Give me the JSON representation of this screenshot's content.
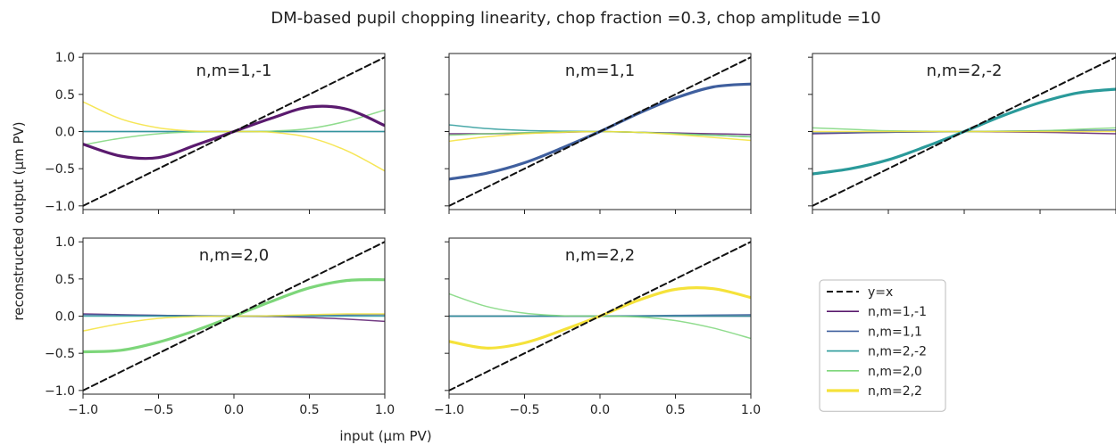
{
  "figure": {
    "title": "DM-based pupil chopping linearity, chop fraction =0.3, chop amplitude =10",
    "xlabel": "input (μm PV)",
    "ylabel": "reconstructed output (μm PV)"
  },
  "colors": {
    "n,m=1,-1": "#5a1a6e",
    "n,m=1,1": "#3f5f9e",
    "n,m=2,-2": "#2a9a9a",
    "n,m=2,0": "#7dd67a",
    "n,m=2,2": "#f5e23a",
    "y=x": "#111111"
  },
  "legend": {
    "location": "lower-right",
    "entries": [
      "y=x",
      "n,m=1,-1",
      "n,m=1,1",
      "n,m=2,-2",
      "n,m=2,0",
      "n,m=2,2"
    ]
  },
  "chart_data": [
    {
      "type": "line",
      "title": "n,m=1,-1",
      "x": [
        -1.0,
        -0.75,
        -0.5,
        -0.25,
        0.0,
        0.25,
        0.5,
        0.75,
        1.0
      ],
      "xlim": [
        -1.0,
        1.0
      ],
      "ylim": [
        -1.05,
        1.05
      ],
      "xticks": [
        "−1.0",
        "−0.5",
        "0.0",
        "0.5",
        "1.0"
      ],
      "yticks": [
        "−1.0",
        "−0.5",
        "0.0",
        "0.5",
        "1.0"
      ],
      "series": [
        {
          "name": "y=x",
          "values": [
            -1.0,
            -0.75,
            -0.5,
            -0.25,
            0.0,
            0.25,
            0.5,
            0.75,
            1.0
          ]
        },
        {
          "name": "n,m=1,-1",
          "values": [
            -0.17,
            -0.33,
            -0.35,
            -0.18,
            0.0,
            0.18,
            0.33,
            0.3,
            0.08
          ]
        },
        {
          "name": "n,m=1,1",
          "values": [
            0.0,
            0.0,
            0.0,
            0.0,
            0.0,
            0.0,
            0.0,
            0.0,
            0.0
          ]
        },
        {
          "name": "n,m=2,-2",
          "values": [
            0.0,
            0.0,
            0.0,
            0.0,
            0.0,
            0.0,
            0.0,
            0.0,
            0.0
          ]
        },
        {
          "name": "n,m=2,0",
          "values": [
            -0.18,
            -0.09,
            -0.03,
            -0.005,
            0.0,
            0.005,
            0.04,
            0.14,
            0.29
          ]
        },
        {
          "name": "n,m=2,2",
          "values": [
            0.4,
            0.17,
            0.05,
            0.005,
            0.0,
            -0.01,
            -0.08,
            -0.26,
            -0.53
          ]
        }
      ]
    },
    {
      "type": "line",
      "title": "n,m=1,1",
      "x": [
        -1.0,
        -0.75,
        -0.5,
        -0.25,
        0.0,
        0.25,
        0.5,
        0.75,
        1.0
      ],
      "xlim": [
        -1.0,
        1.0
      ],
      "ylim": [
        -1.05,
        1.05
      ],
      "xticks": [
        "−1.0",
        "−0.5",
        "0.0",
        "0.5",
        "1.0"
      ],
      "yticks": [
        "−1.0",
        "−0.5",
        "0.0",
        "0.5",
        "1.0"
      ],
      "series": [
        {
          "name": "y=x",
          "values": [
            -1.0,
            -0.75,
            -0.5,
            -0.25,
            0.0,
            0.25,
            0.5,
            0.75,
            1.0
          ]
        },
        {
          "name": "n,m=1,-1",
          "values": [
            -0.03,
            -0.03,
            -0.02,
            -0.01,
            0.0,
            -0.01,
            -0.02,
            -0.03,
            -0.04
          ]
        },
        {
          "name": "n,m=1,1",
          "values": [
            -0.64,
            -0.56,
            -0.42,
            -0.22,
            0.0,
            0.24,
            0.45,
            0.6,
            0.64
          ]
        },
        {
          "name": "n,m=2,-2",
          "values": [
            0.09,
            0.04,
            0.015,
            0.005,
            0.0,
            -0.01,
            -0.03,
            -0.05,
            -0.07
          ]
        },
        {
          "name": "n,m=2,0",
          "values": [
            -0.05,
            -0.03,
            -0.015,
            -0.005,
            0.0,
            -0.01,
            -0.03,
            -0.05,
            -0.07
          ]
        },
        {
          "name": "n,m=2,2",
          "values": [
            -0.13,
            -0.07,
            -0.03,
            -0.01,
            0.0,
            -0.01,
            -0.04,
            -0.08,
            -0.12
          ]
        }
      ]
    },
    {
      "type": "line",
      "title": "n,m=2,-2",
      "x": [
        -1.0,
        -0.75,
        -0.5,
        -0.25,
        0.0,
        0.25,
        0.5,
        0.75,
        1.0
      ],
      "xlim": [
        -1.0,
        1.0
      ],
      "ylim": [
        -1.05,
        1.05
      ],
      "xticks": [
        "−1.0",
        "−0.5",
        "0.0",
        "0.5",
        "1.0"
      ],
      "yticks": [
        "−1.0",
        "−0.5",
        "0.0",
        "0.5",
        "1.0"
      ],
      "series": [
        {
          "name": "y=x",
          "values": [
            -1.0,
            -0.75,
            -0.5,
            -0.25,
            0.0,
            0.25,
            0.5,
            0.75,
            1.0
          ]
        },
        {
          "name": "n,m=1,-1",
          "values": [
            -0.03,
            -0.02,
            -0.01,
            -0.005,
            0.0,
            -0.005,
            -0.01,
            -0.02,
            -0.03
          ]
        },
        {
          "name": "n,m=1,1",
          "values": [
            -0.02,
            -0.015,
            -0.01,
            -0.005,
            0.0,
            0.005,
            0.01,
            0.015,
            0.02
          ]
        },
        {
          "name": "n,m=2,-2",
          "values": [
            -0.57,
            -0.5,
            -0.38,
            -0.2,
            0.0,
            0.21,
            0.39,
            0.52,
            0.57
          ]
        },
        {
          "name": "n,m=2,0",
          "values": [
            0.05,
            0.03,
            0.01,
            0.005,
            0.0,
            0.005,
            0.01,
            0.03,
            0.05
          ]
        },
        {
          "name": "n,m=2,2",
          "values": [
            0.0,
            0.0,
            0.0,
            0.0,
            0.0,
            0.0,
            0.0,
            0.0,
            0.0
          ]
        }
      ]
    },
    {
      "type": "line",
      "title": "n,m=2,0",
      "x": [
        -1.0,
        -0.75,
        -0.5,
        -0.25,
        0.0,
        0.25,
        0.5,
        0.75,
        1.0
      ],
      "xlim": [
        -1.0,
        1.0
      ],
      "ylim": [
        -1.05,
        1.05
      ],
      "xticks": [
        "−1.0",
        "−0.5",
        "0.0",
        "0.5",
        "1.0"
      ],
      "yticks": [
        "−1.0",
        "−0.5",
        "0.0",
        "0.5",
        "1.0"
      ],
      "series": [
        {
          "name": "y=x",
          "values": [
            -1.0,
            -0.75,
            -0.5,
            -0.25,
            0.0,
            0.25,
            0.5,
            0.75,
            1.0
          ]
        },
        {
          "name": "n,m=1,-1",
          "values": [
            0.03,
            0.02,
            0.01,
            0.005,
            0.0,
            -0.005,
            -0.02,
            -0.04,
            -0.07
          ]
        },
        {
          "name": "n,m=1,1",
          "values": [
            0.02,
            0.015,
            0.01,
            0.005,
            0.0,
            0.005,
            0.01,
            0.015,
            0.02
          ]
        },
        {
          "name": "n,m=2,-2",
          "values": [
            0.0,
            0.0,
            0.0,
            0.0,
            0.0,
            0.0,
            0.0,
            0.0,
            0.0
          ]
        },
        {
          "name": "n,m=2,0",
          "values": [
            -0.48,
            -0.46,
            -0.35,
            -0.19,
            0.0,
            0.2,
            0.38,
            0.48,
            0.49
          ]
        },
        {
          "name": "n,m=2,2",
          "values": [
            -0.2,
            -0.1,
            -0.03,
            -0.005,
            0.0,
            0.005,
            0.02,
            0.03,
            0.03
          ]
        }
      ]
    },
    {
      "type": "line",
      "title": "n,m=2,2",
      "x": [
        -1.0,
        -0.75,
        -0.5,
        -0.25,
        0.0,
        0.25,
        0.5,
        0.75,
        1.0
      ],
      "xlim": [
        -1.0,
        1.0
      ],
      "ylim": [
        -1.05,
        1.05
      ],
      "xticks": [
        "−1.0",
        "−0.5",
        "0.0",
        "0.5",
        "1.0"
      ],
      "yticks": [
        "−1.0",
        "−0.5",
        "0.0",
        "0.5",
        "1.0"
      ],
      "series": [
        {
          "name": "y=x",
          "values": [
            -1.0,
            -0.75,
            -0.5,
            -0.25,
            0.0,
            0.25,
            0.5,
            0.75,
            1.0
          ]
        },
        {
          "name": "n,m=1,-1",
          "values": [
            0.0,
            0.0,
            0.0,
            0.0,
            0.0,
            0.0,
            0.0,
            0.0,
            0.0
          ]
        },
        {
          "name": "n,m=1,1",
          "values": [
            0.0,
            0.0,
            0.0,
            0.0,
            0.0,
            0.005,
            0.01,
            0.015,
            0.02
          ]
        },
        {
          "name": "n,m=2,-2",
          "values": [
            0.0,
            0.0,
            0.0,
            0.0,
            0.0,
            0.0,
            0.0,
            0.0,
            0.0
          ]
        },
        {
          "name": "n,m=2,0",
          "values": [
            0.3,
            0.13,
            0.04,
            0.005,
            0.0,
            -0.01,
            -0.06,
            -0.16,
            -0.3
          ]
        },
        {
          "name": "n,m=2,2",
          "values": [
            -0.34,
            -0.43,
            -0.36,
            -0.19,
            0.0,
            0.21,
            0.36,
            0.37,
            0.25
          ]
        }
      ]
    }
  ]
}
